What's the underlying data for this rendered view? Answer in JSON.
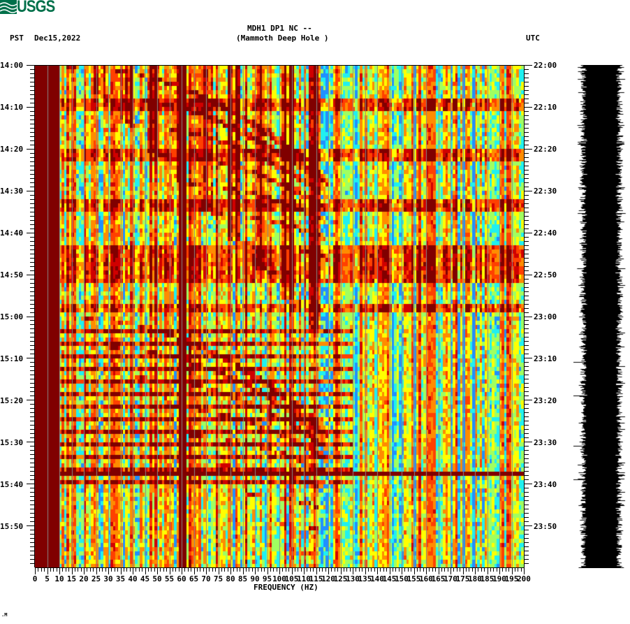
{
  "header": {
    "logo_text": "USGS",
    "logo_color": "#00704a",
    "station_line": "MDH1 DP1 NC --",
    "station_name": "(Mammoth Deep Hole )",
    "left_timezone": "PST",
    "date": "Dec15,2022",
    "right_timezone": "UTC"
  },
  "footer": {
    "mark": ".M"
  },
  "chart_data": {
    "type": "heatmap",
    "title": "MDH1 DP1 NC -- (Mammoth Deep Hole )",
    "xlabel": "FREQUENCY (HZ)",
    "ylabel_left": "PST",
    "ylabel_right": "UTC",
    "x_range": [
      0,
      200
    ],
    "x_ticks": [
      0,
      5,
      10,
      15,
      20,
      25,
      30,
      35,
      40,
      45,
      50,
      55,
      60,
      65,
      70,
      75,
      80,
      85,
      90,
      95,
      100,
      105,
      110,
      115,
      120,
      125,
      130,
      135,
      140,
      145,
      150,
      155,
      160,
      165,
      170,
      175,
      180,
      185,
      190,
      195,
      200
    ],
    "y_ticks_left": [
      "14:00",
      "14:10",
      "14:20",
      "14:30",
      "14:40",
      "14:50",
      "15:00",
      "15:10",
      "15:20",
      "15:30",
      "15:40",
      "15:50"
    ],
    "y_ticks_right": [
      "22:00",
      "22:10",
      "22:20",
      "22:30",
      "22:40",
      "22:50",
      "23:00",
      "23:10",
      "23:20",
      "23:30",
      "23:40",
      "23:50"
    ],
    "time_range_minutes": 120,
    "colormap": [
      "#800000",
      "#d00000",
      "#ff4000",
      "#ff8c00",
      "#ffff00",
      "#a0ff60",
      "#20f0f0",
      "#2090ff"
    ],
    "grid_color": "#888888",
    "features": {
      "low_freq_saturated_hz": [
        0,
        10
      ],
      "persistent_line_hz": 60,
      "high_energy_bands_minutes": [
        [
          8,
          11
        ],
        [
          20,
          23
        ],
        [
          32,
          35
        ],
        [
          43,
          52
        ],
        [
          57,
          59
        ]
      ],
      "striped_interval_minutes": [
        62,
        100
      ],
      "horizontal_spike_minute": 97.5,
      "descending_chirp_tracks": true
    },
    "seismogram": {
      "color": "#000000",
      "spike_minutes": [
        64,
        71,
        72,
        76,
        79,
        84,
        87,
        91,
        95,
        98,
        99,
        102,
        104
      ]
    }
  }
}
